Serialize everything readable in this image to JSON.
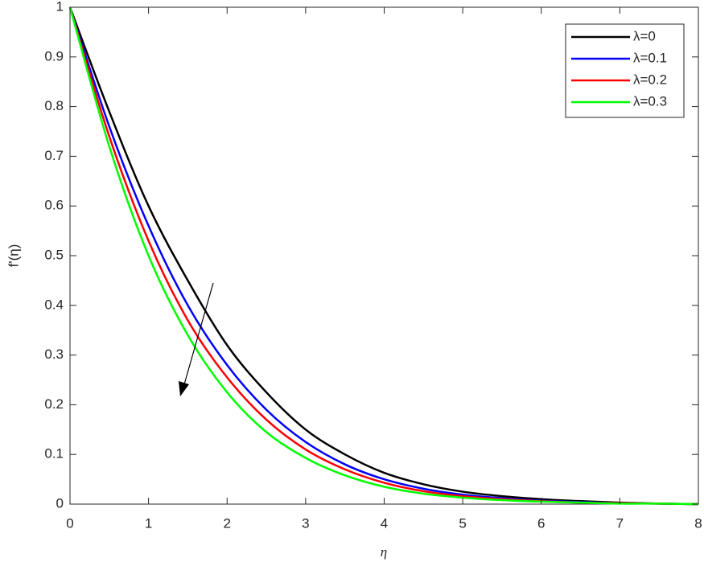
{
  "chart_data": {
    "type": "line",
    "x_label": "η",
    "y_label": "f'(η)",
    "x": [
      0,
      0.5,
      1,
      1.5,
      2,
      2.5,
      3,
      3.5,
      4,
      4.5,
      5,
      5.5,
      6,
      6.5,
      7,
      7.5,
      8
    ],
    "series": [
      {
        "name": "λ=0",
        "color": "#000000",
        "values": [
          1,
          0.79,
          0.6,
          0.45,
          0.32,
          0.225,
          0.15,
          0.1,
          0.063,
          0.04,
          0.025,
          0.016,
          0.01,
          0.006,
          0.003,
          0.001,
          0
        ]
      },
      {
        "name": "λ=0.1",
        "color": "#0000ff",
        "values": [
          1,
          0.76,
          0.56,
          0.4,
          0.28,
          0.19,
          0.125,
          0.08,
          0.05,
          0.031,
          0.019,
          0.012,
          0.007,
          0.004,
          0.002,
          0.001,
          0
        ]
      },
      {
        "name": "λ=0.2",
        "color": "#ff0000",
        "values": [
          1,
          0.74,
          0.53,
          0.37,
          0.255,
          0.17,
          0.11,
          0.07,
          0.043,
          0.026,
          0.016,
          0.01,
          0.006,
          0.003,
          0.002,
          0.001,
          0
        ]
      },
      {
        "name": "λ=0.3",
        "color": "#00ff00",
        "values": [
          1,
          0.72,
          0.5,
          0.34,
          0.225,
          0.145,
          0.093,
          0.058,
          0.035,
          0.021,
          0.013,
          0.008,
          0.005,
          0.003,
          0.001,
          0.001,
          0
        ]
      }
    ],
    "xlim": [
      0,
      8
    ],
    "xticks": [
      0,
      1,
      2,
      3,
      4,
      5,
      6,
      7,
      8
    ],
    "ylim": [
      0,
      1
    ],
    "yticks": [
      0,
      0.1,
      0.2,
      0.3,
      0.4,
      0.5,
      0.6,
      0.7,
      0.8,
      0.9,
      1
    ],
    "grid": false,
    "legend": "upper right"
  }
}
